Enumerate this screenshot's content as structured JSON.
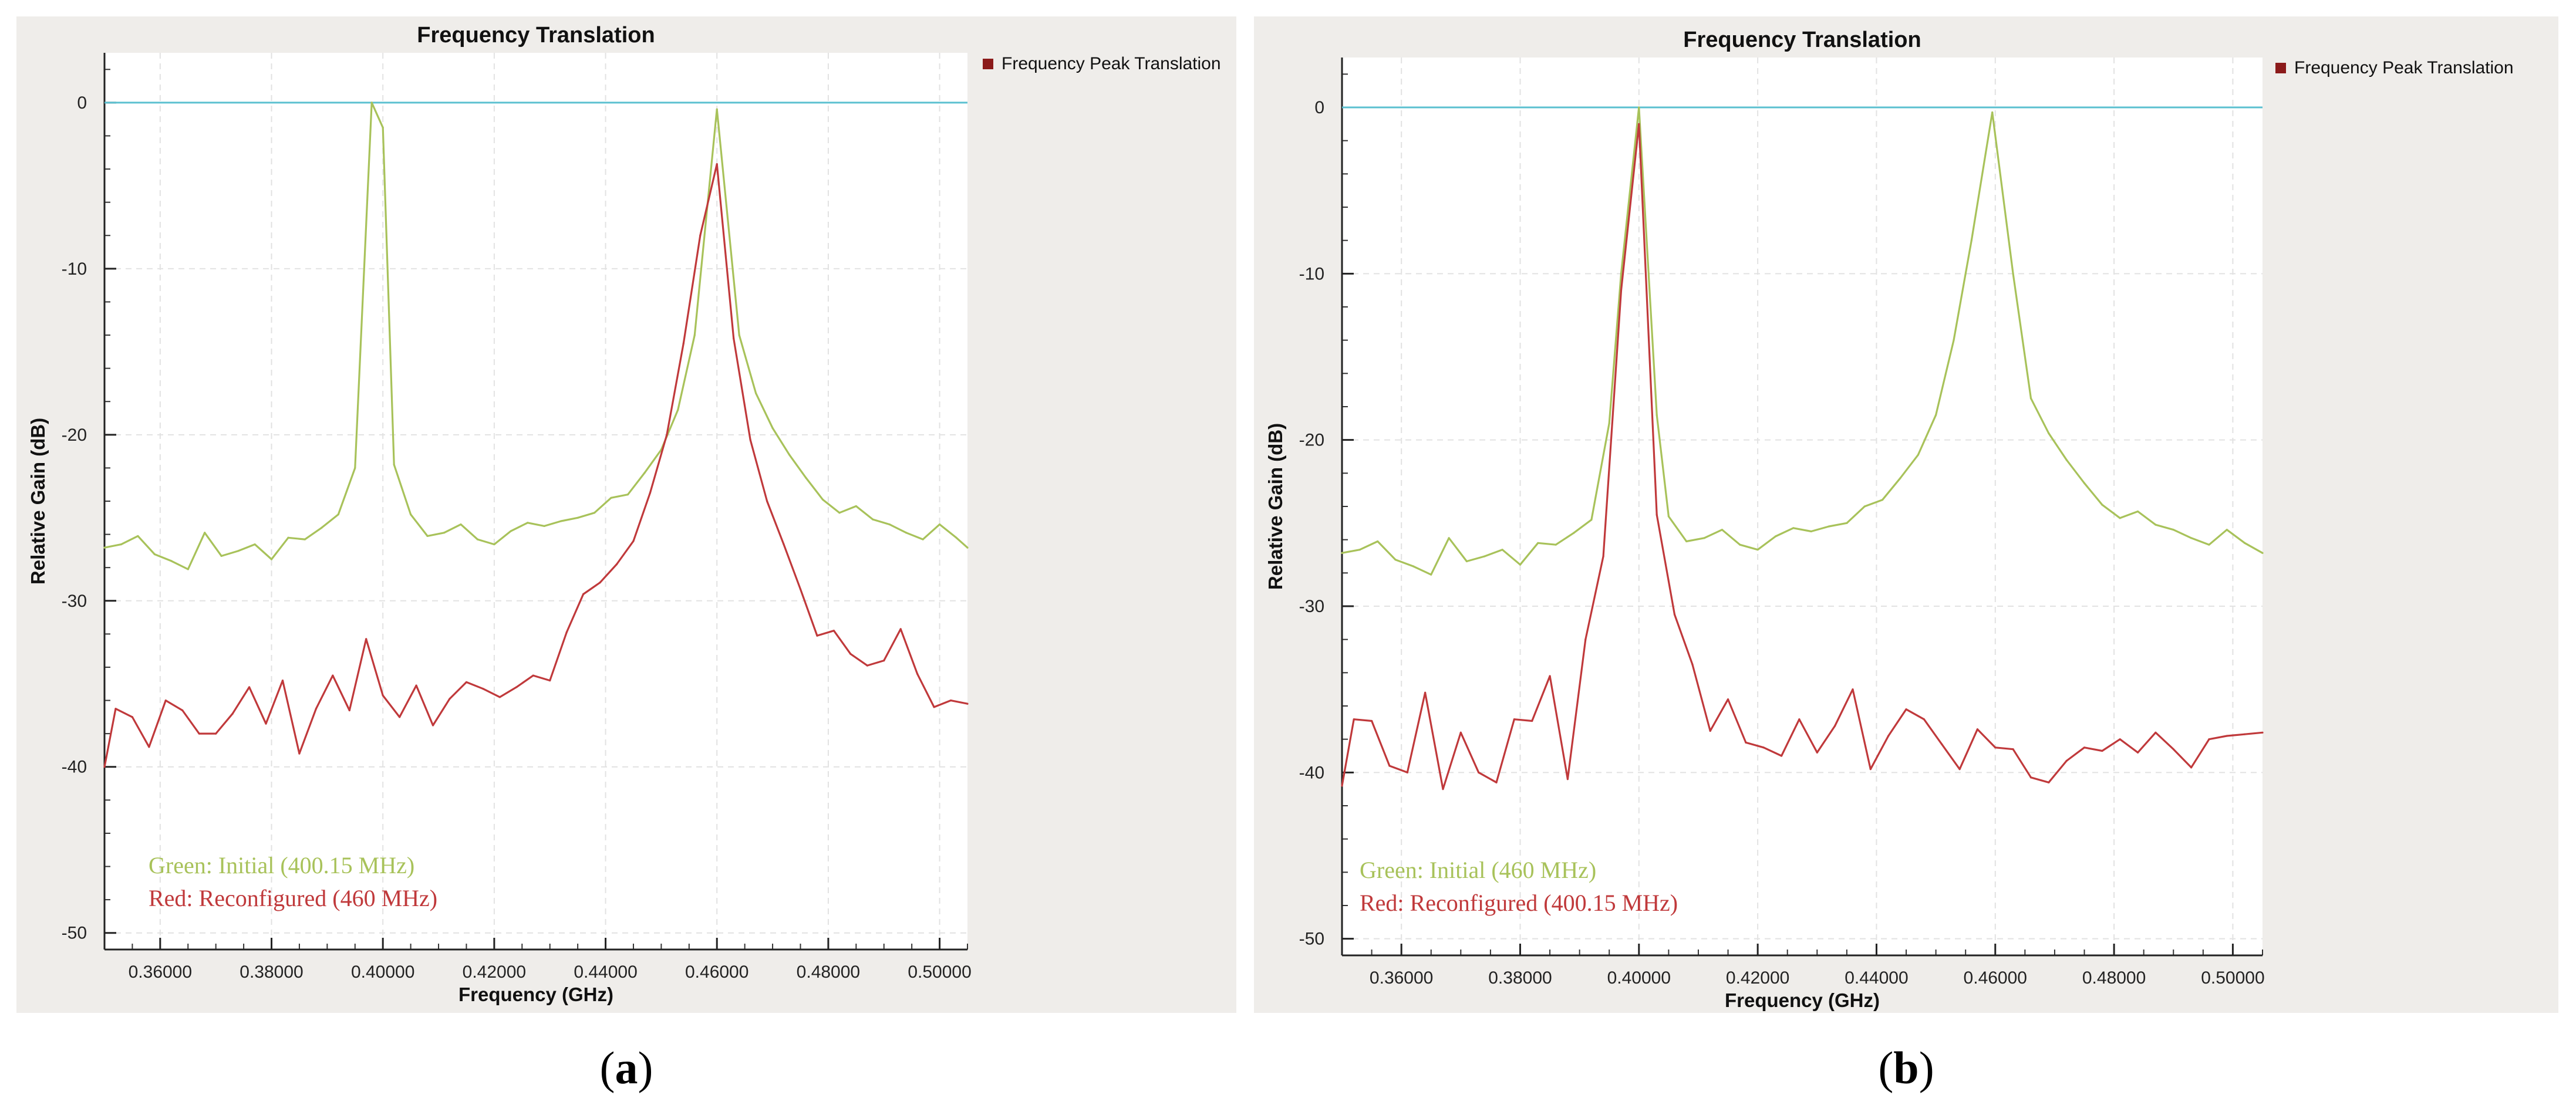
{
  "figure": {
    "captions": [
      "a",
      "b"
    ],
    "colors": {
      "panel_bg": "#efedea",
      "plot_bg": "#ffffff",
      "grid": "#e2e2e2",
      "reference_line": "#5bc0d0",
      "green_series": "#a8c25a",
      "red_series": "#c0393b",
      "legend_marker": "#8b1a1a"
    }
  },
  "chart_data": [
    {
      "type": "line",
      "title": "Frequency Translation",
      "xlabel": "Frequency (GHz)",
      "ylabel": "Relative Gain (dB)",
      "legend": "Frequency Peak Translation",
      "legend_position": "top-right outside",
      "xlim": [
        0.35,
        0.505
      ],
      "ylim": [
        -51,
        3
      ],
      "x_ticks": [
        0.36,
        0.38,
        0.4,
        0.42,
        0.44,
        0.46,
        0.48,
        0.5
      ],
      "x_tick_labels": [
        "0.36000",
        "0.38000",
        "0.40000",
        "0.42000",
        "0.44000",
        "0.46000",
        "0.48000",
        "0.50000"
      ],
      "y_ticks": [
        0,
        -10,
        -20,
        -30,
        -40,
        -50
      ],
      "y_tick_labels": [
        "0",
        "-10",
        "-20",
        "-30",
        "-40",
        "-50"
      ],
      "reference_line": 0,
      "annotations": [
        "Green: Initial (400.15 MHz)",
        "Red: Reconfigured (460 MHz)"
      ],
      "series": [
        {
          "name": "Green: Initial (400.15 MHz)",
          "color": "#a8c25a",
          "x": [
            0.35,
            0.353,
            0.356,
            0.359,
            0.362,
            0.365,
            0.368,
            0.371,
            0.374,
            0.377,
            0.38,
            0.383,
            0.386,
            0.389,
            0.392,
            0.395,
            0.398,
            0.4,
            0.402,
            0.405,
            0.408,
            0.411,
            0.414,
            0.417,
            0.42,
            0.423,
            0.426,
            0.429,
            0.432,
            0.435,
            0.438,
            0.441,
            0.444,
            0.447,
            0.45,
            0.453,
            0.456,
            0.46,
            0.464,
            0.467,
            0.47,
            0.473,
            0.476,
            0.479,
            0.482,
            0.485,
            0.488,
            0.491,
            0.494,
            0.497,
            0.5,
            0.503,
            0.505
          ],
          "y": [
            -26.8,
            -26.6,
            -26.1,
            -27.2,
            -27.6,
            -28.1,
            -25.9,
            -27.3,
            -27.0,
            -26.6,
            -27.5,
            -26.2,
            -26.3,
            -25.6,
            -24.8,
            -22.0,
            0.0,
            -1.5,
            -21.8,
            -24.8,
            -26.1,
            -25.9,
            -25.4,
            -26.3,
            -26.6,
            -25.8,
            -25.3,
            -25.5,
            -25.2,
            -25.0,
            -24.7,
            -23.8,
            -23.6,
            -22.3,
            -20.9,
            -18.5,
            -14.0,
            -0.4,
            -14.0,
            -17.5,
            -19.6,
            -21.2,
            -22.6,
            -23.9,
            -24.7,
            -24.3,
            -25.1,
            -25.4,
            -25.9,
            -26.3,
            -25.4,
            -26.2,
            -26.8
          ]
        },
        {
          "name": "Red: Reconfigured (460 MHz)",
          "color": "#c0393b",
          "x": [
            0.35,
            0.352,
            0.355,
            0.358,
            0.361,
            0.364,
            0.367,
            0.37,
            0.373,
            0.376,
            0.379,
            0.382,
            0.385,
            0.388,
            0.391,
            0.394,
            0.397,
            0.4,
            0.403,
            0.406,
            0.409,
            0.412,
            0.415,
            0.418,
            0.421,
            0.424,
            0.427,
            0.43,
            0.433,
            0.436,
            0.439,
            0.442,
            0.445,
            0.448,
            0.451,
            0.454,
            0.457,
            0.46,
            0.463,
            0.466,
            0.469,
            0.472,
            0.475,
            0.478,
            0.481,
            0.484,
            0.487,
            0.49,
            0.493,
            0.496,
            0.499,
            0.502,
            0.505
          ],
          "y": [
            -40.0,
            -36.5,
            -37.0,
            -38.8,
            -36.0,
            -36.6,
            -38.0,
            -38.0,
            -36.8,
            -35.2,
            -37.4,
            -34.8,
            -39.2,
            -36.5,
            -34.5,
            -36.6,
            -32.3,
            -35.7,
            -37.0,
            -35.1,
            -37.5,
            -35.9,
            -34.9,
            -35.3,
            -35.8,
            -35.2,
            -34.5,
            -34.8,
            -31.9,
            -29.6,
            -28.9,
            -27.8,
            -26.4,
            -23.5,
            -20.0,
            -14.5,
            -8.0,
            -3.7,
            -14.2,
            -20.3,
            -24.0,
            -26.6,
            -29.3,
            -32.1,
            -31.8,
            -33.2,
            -33.9,
            -33.6,
            -31.7,
            -34.4,
            -36.4,
            -36.0,
            -36.2
          ]
        }
      ]
    },
    {
      "type": "line",
      "title": "Frequency Translation",
      "xlabel": "Frequency (GHz)",
      "ylabel": "Relative Gain (dB)",
      "legend": "Frequency Peak Translation",
      "legend_position": "top-right outside",
      "xlim": [
        0.35,
        0.505
      ],
      "ylim": [
        -51,
        3
      ],
      "x_ticks": [
        0.36,
        0.38,
        0.4,
        0.42,
        0.44,
        0.46,
        0.48,
        0.5
      ],
      "x_tick_labels": [
        "0.36000",
        "0.38000",
        "0.40000",
        "0.42000",
        "0.44000",
        "0.46000",
        "0.48000",
        "0.50000"
      ],
      "y_ticks": [
        0,
        -10,
        -20,
        -30,
        -40,
        -50
      ],
      "y_tick_labels": [
        "0",
        "-10",
        "-20",
        "-30",
        "-40",
        "-50"
      ],
      "reference_line": 0,
      "annotations": [
        "Green: Initial (460 MHz)",
        "Red: Reconfigured (400.15 MHz)"
      ],
      "series": [
        {
          "name": "Green: Initial (460 MHz)",
          "color": "#a8c25a",
          "x": [
            0.35,
            0.353,
            0.356,
            0.359,
            0.362,
            0.365,
            0.368,
            0.371,
            0.374,
            0.377,
            0.38,
            0.383,
            0.386,
            0.389,
            0.392,
            0.395,
            0.397,
            0.4,
            0.403,
            0.405,
            0.408,
            0.411,
            0.414,
            0.417,
            0.42,
            0.423,
            0.426,
            0.429,
            0.432,
            0.435,
            0.438,
            0.441,
            0.444,
            0.447,
            0.45,
            0.453,
            0.456,
            0.4595,
            0.463,
            0.466,
            0.469,
            0.472,
            0.475,
            0.478,
            0.481,
            0.484,
            0.487,
            0.49,
            0.493,
            0.496,
            0.499,
            0.502,
            0.505
          ],
          "y": [
            -26.8,
            -26.6,
            -26.1,
            -27.2,
            -27.6,
            -28.1,
            -25.9,
            -27.3,
            -27.0,
            -26.6,
            -27.5,
            -26.2,
            -26.3,
            -25.6,
            -24.8,
            -19.0,
            -10.0,
            0.0,
            -18.5,
            -24.6,
            -26.1,
            -25.9,
            -25.4,
            -26.3,
            -26.6,
            -25.8,
            -25.3,
            -25.5,
            -25.2,
            -25.0,
            -24.0,
            -23.6,
            -22.3,
            -20.9,
            -18.5,
            -14.0,
            -8.0,
            -0.3,
            -10.0,
            -17.5,
            -19.6,
            -21.2,
            -22.6,
            -23.9,
            -24.7,
            -24.3,
            -25.1,
            -25.4,
            -25.9,
            -26.3,
            -25.4,
            -26.2,
            -26.8
          ]
        },
        {
          "name": "Red: Reconfigured (400.15 MHz)",
          "color": "#c0393b",
          "x": [
            0.35,
            0.352,
            0.355,
            0.358,
            0.361,
            0.364,
            0.367,
            0.37,
            0.373,
            0.376,
            0.379,
            0.382,
            0.385,
            0.388,
            0.391,
            0.394,
            0.397,
            0.4,
            0.403,
            0.406,
            0.409,
            0.412,
            0.415,
            0.418,
            0.421,
            0.424,
            0.427,
            0.43,
            0.433,
            0.436,
            0.439,
            0.442,
            0.445,
            0.448,
            0.451,
            0.454,
            0.457,
            0.46,
            0.463,
            0.466,
            0.469,
            0.472,
            0.475,
            0.478,
            0.481,
            0.484,
            0.487,
            0.49,
            0.493,
            0.496,
            0.499,
            0.502,
            0.505
          ],
          "y": [
            -40.8,
            -36.8,
            -36.9,
            -39.6,
            -40.0,
            -35.2,
            -41.0,
            -37.6,
            -40.0,
            -40.6,
            -36.8,
            -36.9,
            -34.2,
            -40.4,
            -32.0,
            -27.0,
            -11.0,
            -1.0,
            -24.5,
            -30.5,
            -33.5,
            -37.5,
            -35.6,
            -38.2,
            -38.5,
            -39.0,
            -36.8,
            -38.8,
            -37.2,
            -35.0,
            -39.8,
            -37.8,
            -36.2,
            -36.8,
            -38.3,
            -39.8,
            -37.4,
            -38.5,
            -38.6,
            -40.3,
            -40.6,
            -39.3,
            -38.5,
            -38.7,
            -38.0,
            -38.8,
            -37.6,
            -38.6,
            -39.7,
            -38.0,
            -37.8,
            -37.7,
            -37.6
          ]
        }
      ]
    }
  ]
}
